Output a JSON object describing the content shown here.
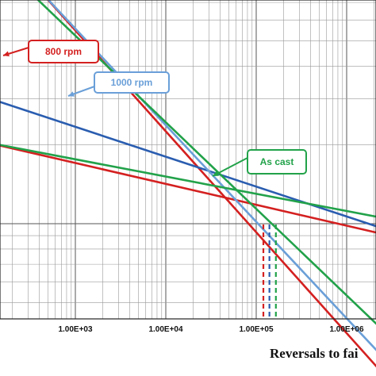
{
  "chart_data": {
    "type": "line",
    "xscale": "log",
    "yscale": "log",
    "xlabel": "Reversals to fai",
    "x_tick_labels": [
      "1.00E+03",
      "1.00E+04",
      "1.00E+05",
      "1.00E+06"
    ],
    "x_tick_values": [
      1000,
      10000,
      100000,
      1000000
    ],
    "xlim": [
      100,
      3000000
    ],
    "grid": true,
    "colors": {
      "red": "#d42020",
      "blue": "#2a5db0",
      "lightblue": "#6a9fd8",
      "green": "#22a24a"
    },
    "series": [
      {
        "key": "red_elastic",
        "color": "red",
        "x": [
          100,
          3000000
        ],
        "y": [
          2.05,
          0.9
        ]
      },
      {
        "key": "red_plastic",
        "color": "red",
        "x": [
          100,
          3000000
        ],
        "y": [
          13.3,
          0.25
        ]
      },
      {
        "key": "blue_elastic",
        "color": "blue",
        "x": [
          100,
          3000000
        ],
        "y": [
          3.05,
          0.94
        ]
      },
      {
        "key": "blue_plastic",
        "color": "lightblue",
        "x": [
          100,
          3000000
        ],
        "y": [
          13.0,
          0.29
        ]
      },
      {
        "key": "green_elastic",
        "color": "green",
        "x": [
          100,
          3000000
        ],
        "y": [
          2.05,
          1.04
        ]
      },
      {
        "key": "green_plastic",
        "color": "green",
        "x": [
          100,
          3000000
        ],
        "y": [
          11.2,
          0.37
        ]
      }
    ],
    "transition_markers": [
      {
        "color": "red",
        "x": 120000
      },
      {
        "color": "blue",
        "x": 140000
      },
      {
        "color": "green",
        "x": 165000
      }
    ],
    "annotations": [
      {
        "text": "800 rpm",
        "color": "red"
      },
      {
        "text": "1000 rpm",
        "color": "lightblue"
      },
      {
        "text": "As cast",
        "color": "green"
      }
    ]
  }
}
